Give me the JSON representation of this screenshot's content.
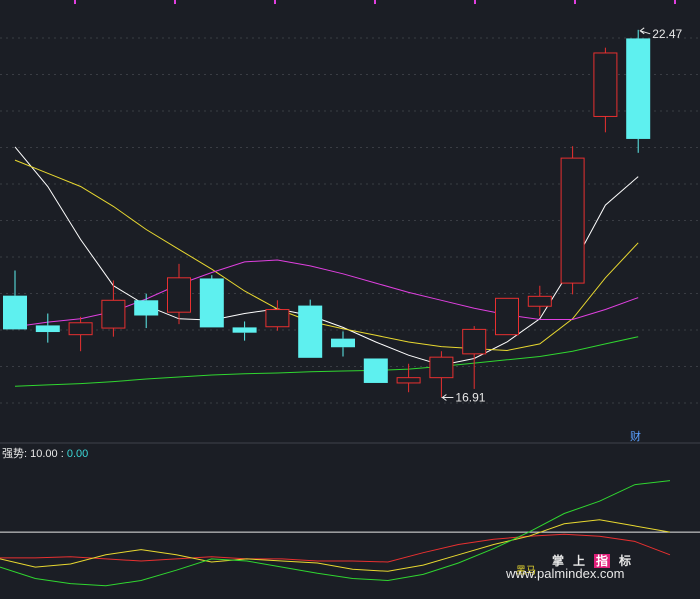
{
  "chart_data": {
    "type": "candlestick",
    "candles": [
      {
        "o": 18.45,
        "h": 18.83,
        "l": 17.94,
        "c": 17.94
      },
      {
        "o": 18.0,
        "h": 18.18,
        "l": 17.74,
        "c": 17.9
      },
      {
        "o": 17.86,
        "h": 18.13,
        "l": 17.61,
        "c": 18.04
      },
      {
        "o": 17.96,
        "h": 18.68,
        "l": 17.83,
        "c": 18.38
      },
      {
        "o": 18.38,
        "h": 18.48,
        "l": 17.96,
        "c": 18.15
      },
      {
        "o": 18.2,
        "h": 18.93,
        "l": 18.02,
        "c": 18.72
      },
      {
        "o": 18.71,
        "h": 18.76,
        "l": 17.97,
        "c": 17.97
      },
      {
        "o": 17.97,
        "h": 18.06,
        "l": 17.77,
        "c": 17.89
      },
      {
        "o": 17.98,
        "h": 18.38,
        "l": 17.92,
        "c": 18.24
      },
      {
        "o": 18.3,
        "h": 18.39,
        "l": 17.51,
        "c": 17.51
      },
      {
        "o": 17.8,
        "h": 17.91,
        "l": 17.53,
        "c": 17.67
      },
      {
        "o": 17.5,
        "h": 17.5,
        "l": 17.13,
        "c": 17.13
      },
      {
        "o": 17.13,
        "h": 17.42,
        "l": 16.99,
        "c": 17.21
      },
      {
        "o": 17.21,
        "h": 17.61,
        "l": 16.91,
        "c": 17.52
      },
      {
        "o": 17.57,
        "h": 17.99,
        "l": 17.04,
        "c": 17.94
      },
      {
        "o": 17.86,
        "h": 18.41,
        "l": 17.86,
        "c": 18.41
      },
      {
        "o": 18.29,
        "h": 18.6,
        "l": 18.14,
        "c": 18.44
      },
      {
        "o": 18.64,
        "h": 20.71,
        "l": 18.47,
        "c": 20.53
      },
      {
        "o": 21.16,
        "h": 22.2,
        "l": 20.92,
        "c": 22.12
      },
      {
        "o": 22.34,
        "h": 22.47,
        "l": 20.61,
        "c": 20.82
      }
    ],
    "ma_lines": [
      {
        "color": "#ffffff",
        "values": [
          20.7,
          20.1,
          19.3,
          18.6,
          18.3,
          18.1,
          18.08,
          18.18,
          18.25,
          18.15,
          17.97,
          17.75,
          17.55,
          17.4,
          17.5,
          17.75,
          18.1,
          18.9,
          19.82,
          20.25
        ]
      },
      {
        "color": "#e8d830",
        "values": [
          20.5,
          20.3,
          20.1,
          19.8,
          19.45,
          19.15,
          18.85,
          18.52,
          18.25,
          18.06,
          17.95,
          17.85,
          17.75,
          17.68,
          17.65,
          17.62,
          17.72,
          18.1,
          18.72,
          19.25
        ]
      },
      {
        "color": "#e040e0",
        "values": [
          17.98,
          18.05,
          18.1,
          18.21,
          18.4,
          18.62,
          18.8,
          18.96,
          18.99,
          18.9,
          18.78,
          18.64,
          18.5,
          18.38,
          18.26,
          18.16,
          18.09,
          18.09,
          18.24,
          18.42
        ]
      },
      {
        "color": "#30d630",
        "values": [
          17.08,
          17.1,
          17.12,
          17.15,
          17.19,
          17.22,
          17.25,
          17.27,
          17.28,
          17.3,
          17.31,
          17.32,
          17.34,
          17.38,
          17.43,
          17.48,
          17.53,
          17.61,
          17.72,
          17.83
        ]
      }
    ],
    "ylim": [
      16.6,
      22.8
    ],
    "high_label": "22.47",
    "low_label": "16.91",
    "fin_marker": "财",
    "indicator": {
      "name": "强势",
      "value1": "10.00",
      "value2": "0.00",
      "lines": [
        {
          "color": "#e83030",
          "values": [
            37,
            37,
            38,
            36,
            34,
            36,
            38,
            36,
            36,
            34,
            34,
            33,
            42,
            50,
            55,
            58,
            60,
            58,
            53,
            40
          ]
        },
        {
          "color": "#e8d830",
          "values": [
            36,
            28,
            31,
            40,
            45,
            40,
            33,
            36,
            34,
            32,
            26,
            24,
            30,
            40,
            50,
            58,
            70,
            74,
            68,
            62
          ]
        },
        {
          "color": "#30d630",
          "values": [
            28,
            17,
            12,
            10,
            15,
            25,
            36,
            34,
            28,
            22,
            17,
            15,
            21,
            32,
            46,
            62,
            80,
            92,
            108,
            112
          ]
        }
      ],
      "ref_level": 62,
      "ylim": [
        0,
        130
      ]
    }
  },
  "watermark": {
    "chars": [
      "掌",
      "上",
      "指",
      "标"
    ],
    "url": "www.palmindex.com",
    "tag": "黑马"
  },
  "colors": {
    "up": "#e83030",
    "down": "#5ef0ef",
    "grid": "#3a3d44",
    "background": "#1b1e25"
  }
}
